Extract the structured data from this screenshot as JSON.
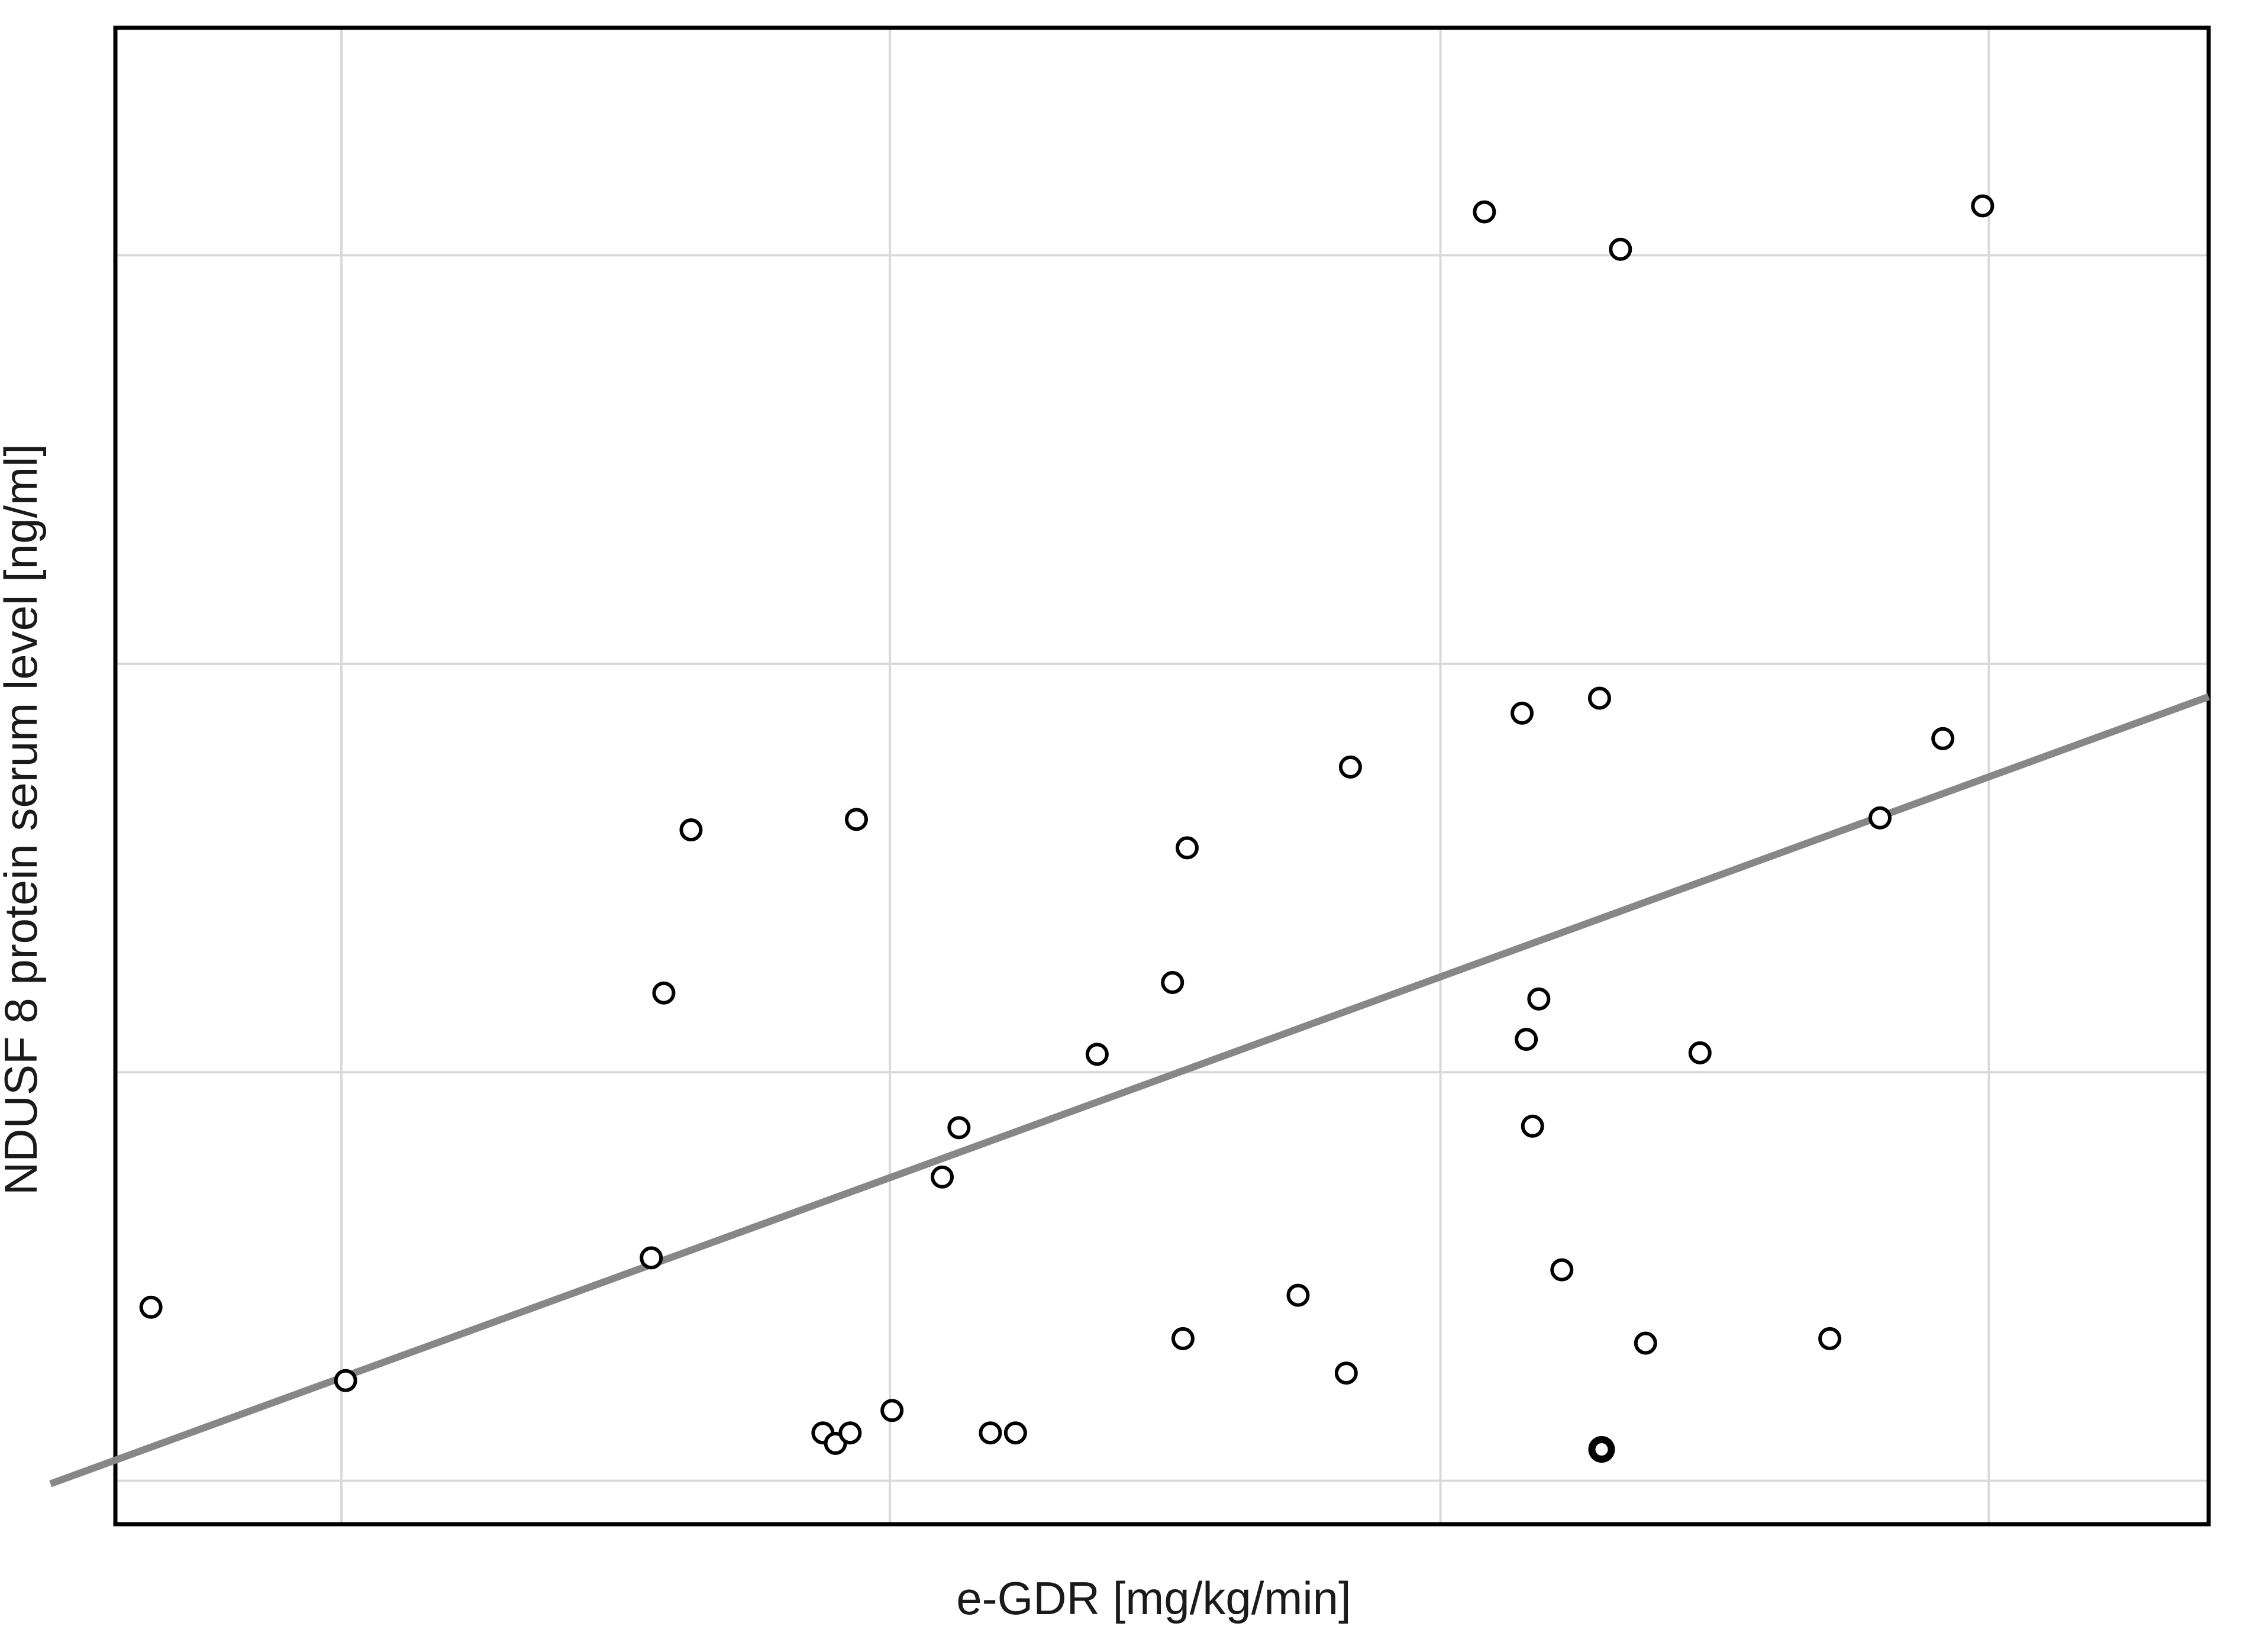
{
  "chart_data": {
    "type": "scatter",
    "title": "",
    "xlabel": "e-GDR [mg/kg/min]",
    "ylabel": "NDUSF 8 protein serum level [ng/ml]",
    "legend": "none",
    "grid": "on",
    "axis_tick_labels_visible": false,
    "x_range_frac": [
      0,
      1
    ],
    "y_range_frac": [
      0,
      1
    ],
    "gridlines_frac": {
      "x": [
        0.108,
        0.37,
        0.633,
        0.895
      ],
      "y": [
        0.029,
        0.302,
        0.575,
        0.848
      ]
    },
    "points_frac": [
      {
        "x": 0.654,
        "y": 0.877,
        "bold": false
      },
      {
        "x": 0.719,
        "y": 0.852,
        "bold": false
      },
      {
        "x": 0.892,
        "y": 0.881,
        "bold": false
      },
      {
        "x": 0.672,
        "y": 0.542,
        "bold": false
      },
      {
        "x": 0.709,
        "y": 0.552,
        "bold": false
      },
      {
        "x": 0.873,
        "y": 0.525,
        "bold": false
      },
      {
        "x": 0.843,
        "y": 0.472,
        "bold": false
      },
      {
        "x": 0.59,
        "y": 0.506,
        "bold": false
      },
      {
        "x": 0.512,
        "y": 0.452,
        "bold": false
      },
      {
        "x": 0.354,
        "y": 0.471,
        "bold": false
      },
      {
        "x": 0.275,
        "y": 0.464,
        "bold": false
      },
      {
        "x": 0.262,
        "y": 0.355,
        "bold": false
      },
      {
        "x": 0.505,
        "y": 0.362,
        "bold": false
      },
      {
        "x": 0.469,
        "y": 0.314,
        "bold": false
      },
      {
        "x": 0.403,
        "y": 0.265,
        "bold": false
      },
      {
        "x": 0.395,
        "y": 0.232,
        "bold": false
      },
      {
        "x": 0.68,
        "y": 0.351,
        "bold": false
      },
      {
        "x": 0.674,
        "y": 0.324,
        "bold": false
      },
      {
        "x": 0.757,
        "y": 0.315,
        "bold": false
      },
      {
        "x": 0.677,
        "y": 0.266,
        "bold": false
      },
      {
        "x": 0.256,
        "y": 0.178,
        "bold": false
      },
      {
        "x": 0.11,
        "y": 0.096,
        "bold": false
      },
      {
        "x": 0.017,
        "y": 0.145,
        "bold": false
      },
      {
        "x": 0.51,
        "y": 0.124,
        "bold": false
      },
      {
        "x": 0.565,
        "y": 0.153,
        "bold": false
      },
      {
        "x": 0.588,
        "y": 0.101,
        "bold": false
      },
      {
        "x": 0.691,
        "y": 0.17,
        "bold": false
      },
      {
        "x": 0.731,
        "y": 0.121,
        "bold": false
      },
      {
        "x": 0.819,
        "y": 0.124,
        "bold": false
      },
      {
        "x": 0.71,
        "y": 0.05,
        "bold": true
      },
      {
        "x": 0.338,
        "y": 0.061,
        "bold": false
      },
      {
        "x": 0.344,
        "y": 0.054,
        "bold": false
      },
      {
        "x": 0.351,
        "y": 0.061,
        "bold": false
      },
      {
        "x": 0.371,
        "y": 0.076,
        "bold": false
      },
      {
        "x": 0.418,
        "y": 0.061,
        "bold": false
      },
      {
        "x": 0.43,
        "y": 0.061,
        "bold": false
      }
    ],
    "trend_line_frac": {
      "x1": -0.031,
      "y1": 0.027,
      "x2": 1.0,
      "y2": 0.553
    },
    "marker_style": "open-circle",
    "colors": {
      "background": "#ffffff",
      "marker_stroke": "#000000",
      "marker_fill": "#ffffff",
      "trend_line": "#878787",
      "gridline": "#d9d9d9",
      "plot_border": "#000000",
      "label_text": "#1a1a1a"
    }
  }
}
